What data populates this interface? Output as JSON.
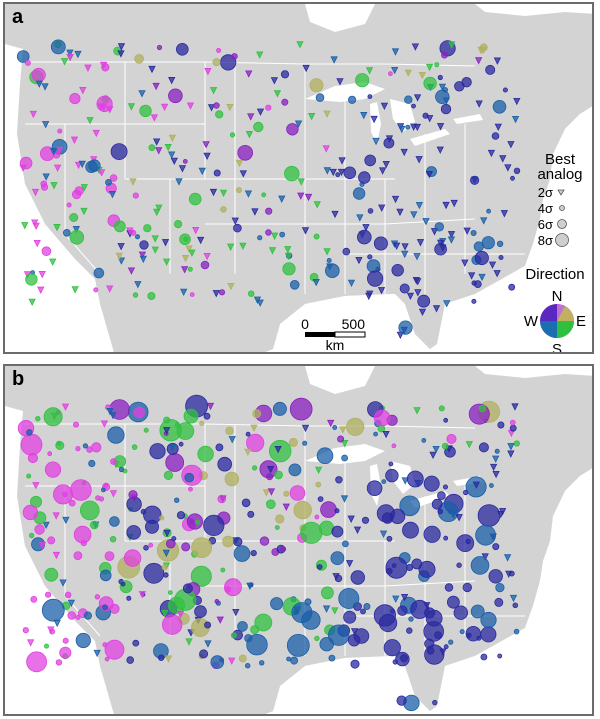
{
  "panels": [
    {
      "letter": "a"
    },
    {
      "letter": "b"
    }
  ],
  "legend": {
    "best_analog_title_1": "Best",
    "best_analog_title_2": "analog",
    "sizes": [
      {
        "label": "2σ",
        "marker": "triangle"
      },
      {
        "label": "4σ",
        "marker": "circle"
      },
      {
        "label": "6σ",
        "marker": "circle"
      },
      {
        "label": "8σ",
        "marker": "circle"
      }
    ],
    "direction_title": "Direction",
    "compass": {
      "n": "N",
      "s": "S",
      "e": "E",
      "w": "W"
    }
  },
  "scale_bar": {
    "start": "0",
    "end": "500",
    "unit": "km"
  },
  "colors": {
    "land": "#d3d3d3",
    "water": "#ffffff",
    "border": "#ffffff",
    "north": "#e040e0",
    "east": "#30c040",
    "south": "#1a5fa8",
    "west": "#2a2aa0",
    "northeast": "#b0b060",
    "northwest": "#8a20c0"
  }
}
